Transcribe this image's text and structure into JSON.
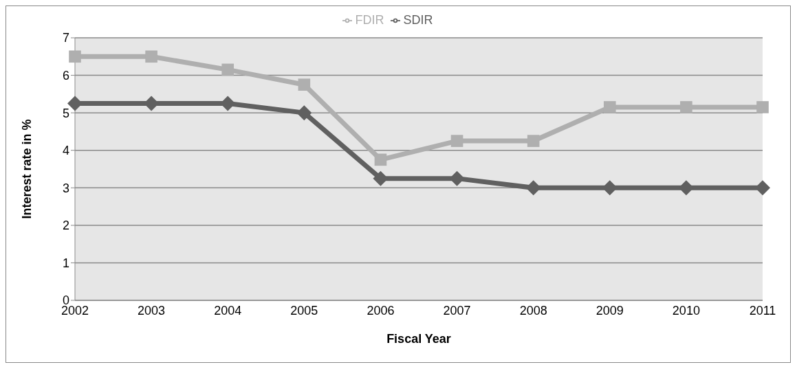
{
  "chart_data": {
    "type": "line",
    "xlabel": "Fiscal Year",
    "ylabel": "Interest rate in %",
    "categories": [
      "2002",
      "2003",
      "2004",
      "2005",
      "2006",
      "2007",
      "2008",
      "2009",
      "2010",
      "2011"
    ],
    "series": [
      {
        "name": "SDIR",
        "color": "#606060",
        "marker": "diamond",
        "values": [
          5.25,
          5.25,
          5.25,
          5.0,
          3.25,
          3.25,
          3.0,
          3.0,
          3.0,
          3.0
        ]
      },
      {
        "name": "FDIR",
        "color": "#afafaf",
        "marker": "square",
        "values": [
          6.5,
          6.5,
          6.15,
          5.75,
          3.75,
          4.25,
          4.25,
          5.15,
          5.15,
          5.15
        ]
      }
    ],
    "ylim": [
      0,
      7
    ],
    "yticks": [
      0,
      1,
      2,
      3,
      4,
      5,
      6,
      7
    ],
    "grid": "y",
    "legend": "top"
  }
}
